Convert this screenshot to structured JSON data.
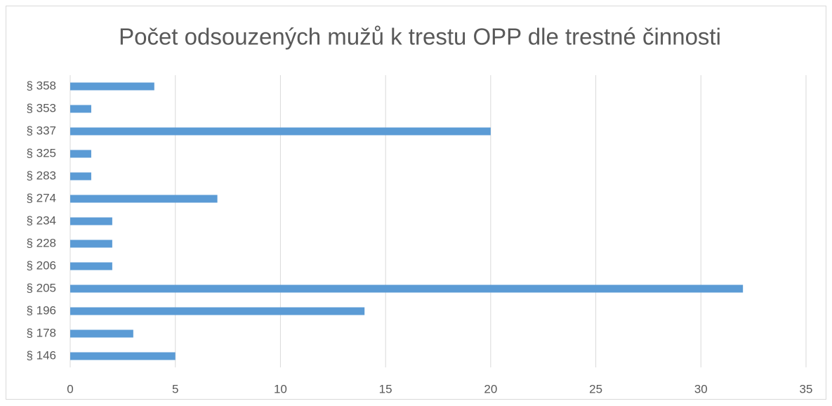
{
  "chart_data": {
    "type": "bar",
    "orientation": "horizontal",
    "title": "Počet odsouzených mužů k trestu OPP dle trestné činnosti",
    "categories": [
      "§ 358",
      "§ 353",
      "§ 337",
      "§ 325",
      "§ 283",
      "§ 274",
      "§ 234",
      "§ 228",
      "§ 206",
      "§ 205",
      "§ 196",
      "§ 178",
      "§ 146"
    ],
    "values": [
      4,
      1,
      20,
      1,
      1,
      7,
      2,
      2,
      2,
      32,
      14,
      3,
      5
    ],
    "color": "#5b9bd5",
    "xlim": [
      0,
      35
    ],
    "xticks": [
      0,
      5,
      10,
      15,
      20,
      25,
      30,
      35
    ],
    "grid": true
  }
}
